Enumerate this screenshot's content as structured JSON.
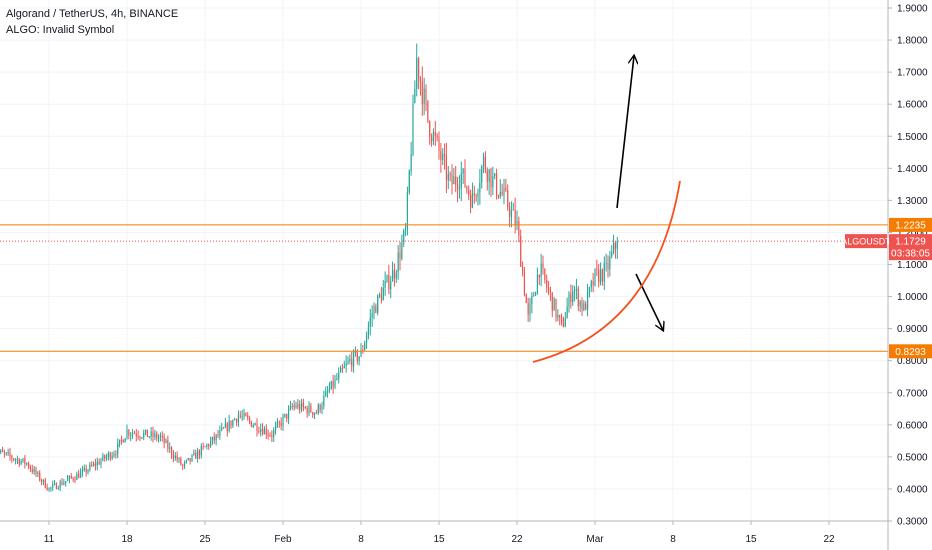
{
  "header": {
    "title": "Algorand / TetherUS, 4h, BINANCE",
    "study_label": "ALGO: Invalid Symbol"
  },
  "colors": {
    "up": "#26a69a",
    "down": "#ef5350",
    "level_line": "#f57c00",
    "price_line": "#ef5350",
    "curve": "#f4511e",
    "arrow": "#000000",
    "grid": "#f0f3fa"
  },
  "chart_data": {
    "type": "candlestick",
    "symbol": "ALGOUSDT",
    "interval": "4h",
    "exchange": "BINANCE",
    "y_range": [
      0.3,
      1.9
    ],
    "y_ticks": [
      "1.9000",
      "1.8000",
      "1.7000",
      "1.6000",
      "1.5000",
      "1.4000",
      "1.3000",
      "1.2000",
      "1.1000",
      "1.0000",
      "0.9000",
      "0.8000",
      "0.7000",
      "0.6000",
      "0.5000",
      "0.4000",
      "0.3000"
    ],
    "x_ticks": [
      "11",
      "18",
      "25",
      "Feb",
      "8",
      "15",
      "22",
      "Mar",
      "8",
      "15",
      "22"
    ],
    "x_tick_dates": [
      "2021-01-11",
      "2021-01-18",
      "2021-01-25",
      "2021-02-01",
      "2021-02-08",
      "2021-02-15",
      "2021-02-22",
      "2021-03-01",
      "2021-03-08",
      "2021-03-15",
      "2021-03-22"
    ],
    "horizontal_levels": [
      {
        "label": "1.2235",
        "value": 1.2235
      },
      {
        "label": "0.8293",
        "value": 0.8293
      }
    ],
    "current_price": {
      "symbol_label": "ALGOUSDT",
      "value_label": "1.1729",
      "value": 1.1729,
      "countdown": "03:38:05"
    },
    "price_path": [
      {
        "date": "2021-01-06",
        "close": 0.52
      },
      {
        "date": "2021-01-09",
        "close": 0.48
      },
      {
        "date": "2021-01-11",
        "close": 0.4
      },
      {
        "date": "2021-01-14",
        "close": 0.45
      },
      {
        "date": "2021-01-17",
        "close": 0.52
      },
      {
        "date": "2021-01-18",
        "close": 0.58
      },
      {
        "date": "2021-01-21",
        "close": 0.56
      },
      {
        "date": "2021-01-23",
        "close": 0.47
      },
      {
        "date": "2021-01-26",
        "close": 0.56
      },
      {
        "date": "2021-01-28",
        "close": 0.63
      },
      {
        "date": "2021-01-31",
        "close": 0.57
      },
      {
        "date": "2021-02-02",
        "close": 0.66
      },
      {
        "date": "2021-02-04",
        "close": 0.64
      },
      {
        "date": "2021-02-05",
        "close": 0.7
      },
      {
        "date": "2021-02-07",
        "close": 0.8
      },
      {
        "date": "2021-02-08",
        "close": 0.82
      },
      {
        "date": "2021-02-09",
        "close": 0.95
      },
      {
        "date": "2021-02-10",
        "close": 1.02
      },
      {
        "date": "2021-02-11",
        "close": 1.08
      },
      {
        "date": "2021-02-12",
        "close": 1.2
      },
      {
        "date": "2021-02-13",
        "close": 1.74
      },
      {
        "date": "2021-02-14",
        "close": 1.55
      },
      {
        "date": "2021-02-15",
        "close": 1.45
      },
      {
        "date": "2021-02-16",
        "close": 1.35
      },
      {
        "date": "2021-02-17",
        "close": 1.38
      },
      {
        "date": "2021-02-18",
        "close": 1.3
      },
      {
        "date": "2021-02-19",
        "close": 1.42
      },
      {
        "date": "2021-02-20",
        "close": 1.35
      },
      {
        "date": "2021-02-21",
        "close": 1.3
      },
      {
        "date": "2021-02-22",
        "close": 1.22
      },
      {
        "date": "2021-02-23",
        "close": 0.93
      },
      {
        "date": "2021-02-24",
        "close": 1.09
      },
      {
        "date": "2021-02-25",
        "close": 1.0
      },
      {
        "date": "2021-02-26",
        "close": 0.9
      },
      {
        "date": "2021-02-27",
        "close": 1.03
      },
      {
        "date": "2021-02-28",
        "close": 0.96
      },
      {
        "date": "2021-03-01",
        "close": 1.06
      },
      {
        "date": "2021-03-02",
        "close": 1.08
      },
      {
        "date": "2021-03-03",
        "close": 1.1729
      }
    ],
    "annotations": [
      {
        "type": "arrow",
        "direction": "up"
      },
      {
        "type": "arrow",
        "direction": "down"
      },
      {
        "type": "curve",
        "shape": "parabolic"
      }
    ]
  }
}
